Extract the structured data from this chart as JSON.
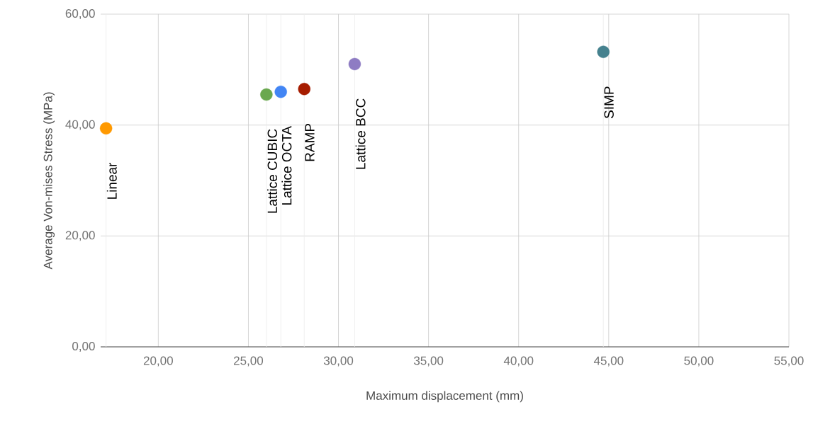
{
  "chart_data": {
    "type": "scatter",
    "xlabel": "Maximum displacement (mm)",
    "ylabel": "Average Von-mises Stress (MPa)",
    "xlim": [
      16.8,
      55
    ],
    "ylim": [
      0,
      60
    ],
    "xticks": [
      {
        "value": 20,
        "label": "20,00"
      },
      {
        "value": 25,
        "label": "25,00"
      },
      {
        "value": 30,
        "label": "30,00"
      },
      {
        "value": 35,
        "label": "35,00"
      },
      {
        "value": 40,
        "label": "40,00"
      },
      {
        "value": 45,
        "label": "45,00"
      },
      {
        "value": 50,
        "label": "50,00"
      },
      {
        "value": 55,
        "label": "55,00"
      }
    ],
    "yticks": [
      {
        "value": 0,
        "label": "0,00"
      },
      {
        "value": 20,
        "label": "20,00"
      },
      {
        "value": 40,
        "label": "40,00"
      },
      {
        "value": 60,
        "label": "60,00"
      }
    ],
    "grid": true,
    "series": [
      {
        "name": "Linear",
        "color": "#ff9900",
        "x": [
          17.1
        ],
        "values": [
          39.4
        ]
      },
      {
        "name": "Lattice CUBIC",
        "color": "#6aa84f",
        "x": [
          26.0
        ],
        "values": [
          45.5
        ]
      },
      {
        "name": "Lattice OCTA",
        "color": "#4285f4",
        "x": [
          26.8
        ],
        "values": [
          46.0
        ]
      },
      {
        "name": "RAMP",
        "color": "#a61c00",
        "x": [
          28.1
        ],
        "values": [
          46.5
        ]
      },
      {
        "name": "Lattice BCC",
        "color": "#8e7cc3",
        "x": [
          30.9
        ],
        "values": [
          51.0
        ]
      },
      {
        "name": "SIMP",
        "color": "#45818e",
        "x": [
          44.7
        ],
        "values": [
          53.2
        ]
      }
    ]
  }
}
